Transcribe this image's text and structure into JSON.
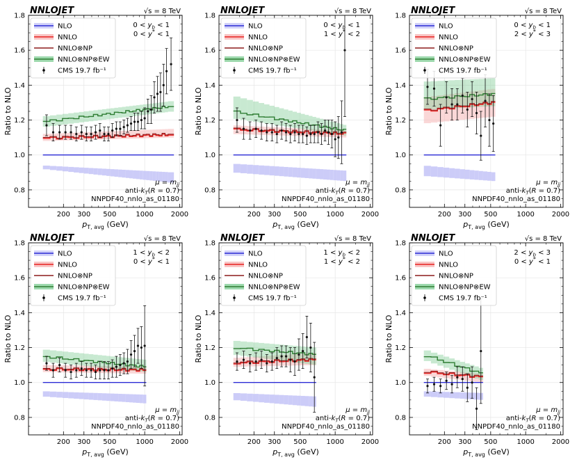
{
  "figure": {
    "brand": "NNLOJET",
    "energy": "√s = 8 TeV",
    "ylabel": "Ratio to NLO",
    "xlabel_main": "p",
    "xlabel_sub": "T, avg",
    "xlabel_unit": " (GeV)",
    "legend": [
      "NLO",
      "NNLO",
      "NNLO⊗NP",
      "NNLO⊗NP⊗EW",
      "CMS 19.7 fb⁻¹"
    ],
    "info": [
      "μ = mjj",
      "anti-kT(R = 0.7)",
      "NNPDF40_nnlo_as_01180"
    ],
    "xticks": [
      "200",
      "300",
      "500",
      "1000",
      "2000"
    ],
    "yticks": [
      "0.8",
      "1.0",
      "1.2",
      "1.4",
      "1.6",
      "1.8"
    ],
    "colors": {
      "nlo": "#2b2bd6",
      "nnlo": "#e8201f",
      "np": "#8b1a1a",
      "ew": "#2e7d32",
      "data": "#111111"
    }
  },
  "chart_data": [
    {
      "type": "line",
      "title": "0 < yb < 1, 0 < y* < 1",
      "region": [
        "0 < y_b < 1",
        "0 < y* < 1"
      ],
      "xlabel": "pT,avg (GeV)",
      "ylabel": "Ratio to NLO",
      "xlim": [
        100,
        2100
      ],
      "ylim": [
        0.7,
        1.8
      ],
      "x_edges": [
        133,
        153,
        174,
        196,
        220,
        245,
        272,
        300,
        330,
        362,
        395,
        430,
        468,
        507,
        548,
        592,
        638,
        686,
        737,
        790,
        846,
        905,
        967,
        1032,
        1101,
        1172,
        1248,
        1327,
        1410,
        1497,
        1588,
        1784
      ],
      "nlo_band": [
        [
          0.92,
          0.94
        ],
        [
          0.84,
          0.9
        ]
      ],
      "nnlo": [
        1.095,
        1.115
      ],
      "nnlo_band": [
        [
          1.08,
          1.12
        ],
        [
          1.1,
          1.15
        ]
      ],
      "ew": [
        1.19,
        1.28
      ],
      "ew_band": [
        [
          1.16,
          1.22
        ],
        [
          1.25,
          1.31
        ]
      ],
      "cms": [
        [
          143,
          1.17,
          0.06
        ],
        [
          163,
          1.13,
          0.05
        ],
        [
          185,
          1.13,
          0.04
        ],
        [
          208,
          1.13,
          0.04
        ],
        [
          232,
          1.13,
          0.04
        ],
        [
          258,
          1.12,
          0.04
        ],
        [
          286,
          1.13,
          0.04
        ],
        [
          315,
          1.12,
          0.04
        ],
        [
          346,
          1.12,
          0.04
        ],
        [
          378,
          1.13,
          0.04
        ],
        [
          412,
          1.14,
          0.04
        ],
        [
          449,
          1.12,
          0.04
        ],
        [
          487,
          1.12,
          0.04
        ],
        [
          527,
          1.14,
          0.04
        ],
        [
          570,
          1.15,
          0.04
        ],
        [
          615,
          1.15,
          0.04
        ],
        [
          662,
          1.16,
          0.04
        ],
        [
          711,
          1.17,
          0.04
        ],
        [
          763,
          1.18,
          0.04
        ],
        [
          818,
          1.19,
          0.05
        ],
        [
          875,
          1.19,
          0.05
        ],
        [
          936,
          1.2,
          0.05
        ],
        [
          1000,
          1.21,
          0.06
        ],
        [
          1066,
          1.25,
          0.07
        ],
        [
          1136,
          1.26,
          0.08
        ],
        [
          1210,
          1.33,
          0.09
        ],
        [
          1287,
          1.35,
          0.1
        ],
        [
          1368,
          1.36,
          0.11
        ],
        [
          1453,
          1.4,
          0.12
        ],
        [
          1542,
          1.48,
          0.13
        ],
        [
          1686,
          1.52,
          0.15
        ]
      ]
    },
    {
      "type": "line",
      "title": "0 < yb < 1, 1 < y* < 2",
      "region": [
        "0 < y_b < 1",
        "1 < y* < 2"
      ],
      "xlabel": "pT,avg (GeV)",
      "ylabel": "Ratio to NLO",
      "xlim": [
        100,
        2100
      ],
      "ylim": [
        0.7,
        1.8
      ],
      "x_edges": [
        133,
        153,
        174,
        196,
        220,
        245,
        272,
        300,
        330,
        362,
        395,
        430,
        468,
        507,
        548,
        592,
        638,
        686,
        737,
        790,
        846,
        905,
        967,
        1032,
        1101,
        1172,
        1248
      ],
      "nlo_band": [
        [
          0.9,
          0.95
        ],
        [
          0.85,
          0.91
        ]
      ],
      "nnlo": [
        1.145,
        1.12
      ],
      "nnlo_band": [
        [
          1.12,
          1.17
        ],
        [
          1.1,
          1.14
        ]
      ],
      "ew": [
        1.25,
        1.14
      ],
      "ew_band": [
        [
          1.21,
          1.34
        ],
        [
          1.11,
          1.17
        ]
      ],
      "cms": [
        [
          143,
          1.2,
          0.07
        ],
        [
          163,
          1.15,
          0.06
        ],
        [
          185,
          1.14,
          0.05
        ],
        [
          208,
          1.15,
          0.05
        ],
        [
          232,
          1.14,
          0.05
        ],
        [
          258,
          1.13,
          0.05
        ],
        [
          286,
          1.13,
          0.05
        ],
        [
          315,
          1.12,
          0.05
        ],
        [
          346,
          1.14,
          0.05
        ],
        [
          378,
          1.13,
          0.05
        ],
        [
          412,
          1.12,
          0.05
        ],
        [
          449,
          1.13,
          0.05
        ],
        [
          487,
          1.12,
          0.05
        ],
        [
          527,
          1.12,
          0.05
        ],
        [
          570,
          1.11,
          0.05
        ],
        [
          615,
          1.12,
          0.05
        ],
        [
          662,
          1.12,
          0.05
        ],
        [
          711,
          1.13,
          0.06
        ],
        [
          763,
          1.12,
          0.06
        ],
        [
          818,
          1.14,
          0.06
        ],
        [
          875,
          1.13,
          0.07
        ],
        [
          936,
          1.12,
          0.08
        ],
        [
          1000,
          1.09,
          0.1
        ],
        [
          1066,
          1.1,
          0.12
        ],
        [
          1136,
          1.13,
          0.18
        ],
        [
          1210,
          1.6,
          0.38
        ]
      ]
    },
    {
      "type": "line",
      "title": "0 < yb < 1, 2 < y* < 3",
      "region": [
        "0 < y_b < 1",
        "2 < y* < 3"
      ],
      "xlabel": "pT,avg (GeV)",
      "ylabel": "Ratio to NLO",
      "xlim": [
        100,
        2100
      ],
      "ylim": [
        0.7,
        1.8
      ],
      "x_edges": [
        133,
        153,
        174,
        196,
        220,
        245,
        272,
        300,
        330,
        362,
        395,
        430,
        468,
        507,
        548
      ],
      "nlo_band": [
        [
          0.88,
          0.94
        ],
        [
          0.85,
          0.9
        ]
      ],
      "nnlo": [
        1.25,
        1.3
      ],
      "nnlo_band": [
        [
          1.18,
          1.33
        ],
        [
          1.22,
          1.38
        ]
      ],
      "ew": [
        1.32,
        1.35
      ],
      "ew_band": [
        [
          1.26,
          1.42
        ],
        [
          1.28,
          1.44
        ]
      ],
      "cms": [
        [
          143,
          1.39,
          0.1
        ],
        [
          163,
          1.38,
          0.1
        ],
        [
          185,
          1.17,
          0.12
        ],
        [
          208,
          1.33,
          0.09
        ],
        [
          232,
          1.29,
          0.09
        ],
        [
          258,
          1.29,
          0.09
        ],
        [
          286,
          1.34,
          0.1
        ],
        [
          315,
          1.26,
          0.1
        ],
        [
          346,
          1.32,
          0.1
        ],
        [
          378,
          1.24,
          0.12
        ],
        [
          412,
          1.11,
          0.14
        ],
        [
          449,
          1.31,
          0.15
        ],
        [
          487,
          1.2,
          0.15
        ],
        [
          527,
          1.18,
          0.16
        ]
      ]
    },
    {
      "type": "line",
      "title": "1 < yb < 2, 0 < y* < 1",
      "region": [
        "1 < y_b < 2",
        "0 < y* < 1"
      ],
      "xlabel": "pT,avg (GeV)",
      "ylabel": "Ratio to NLO",
      "xlim": [
        100,
        2100
      ],
      "ylim": [
        0.7,
        1.8
      ],
      "x_edges": [
        133,
        153,
        174,
        196,
        220,
        245,
        272,
        300,
        330,
        362,
        395,
        430,
        468,
        507,
        548,
        592,
        638,
        686,
        737,
        790,
        846,
        905,
        967,
        1032
      ],
      "nlo_band": [
        [
          0.92,
          0.95
        ],
        [
          0.88,
          0.93
        ]
      ],
      "nnlo": [
        1.075,
        1.07
      ],
      "nnlo_band": [
        [
          1.06,
          1.1
        ],
        [
          1.05,
          1.09
        ]
      ],
      "ew": [
        1.15,
        1.09
      ],
      "ew_band": [
        [
          1.12,
          1.19
        ],
        [
          1.06,
          1.13
        ]
      ],
      "cms": [
        [
          143,
          1.11,
          0.04
        ],
        [
          163,
          1.07,
          0.04
        ],
        [
          185,
          1.1,
          0.04
        ],
        [
          208,
          1.07,
          0.04
        ],
        [
          232,
          1.06,
          0.04
        ],
        [
          258,
          1.07,
          0.04
        ],
        [
          286,
          1.08,
          0.04
        ],
        [
          315,
          1.07,
          0.04
        ],
        [
          346,
          1.07,
          0.04
        ],
        [
          378,
          1.06,
          0.04
        ],
        [
          412,
          1.07,
          0.05
        ],
        [
          449,
          1.07,
          0.05
        ],
        [
          487,
          1.07,
          0.05
        ],
        [
          527,
          1.08,
          0.05
        ],
        [
          570,
          1.09,
          0.06
        ],
        [
          615,
          1.1,
          0.06
        ],
        [
          662,
          1.11,
          0.06
        ],
        [
          711,
          1.12,
          0.07
        ],
        [
          763,
          1.16,
          0.08
        ],
        [
          818,
          1.18,
          0.09
        ],
        [
          875,
          1.21,
          0.1
        ],
        [
          936,
          1.2,
          0.12
        ],
        [
          1000,
          1.21,
          0.23
        ]
      ]
    },
    {
      "type": "line",
      "title": "1 < yb < 2, 1 < y* < 2",
      "region": [
        "1 < y_b < 2",
        "1 < y* < 2"
      ],
      "xlabel": "pT,avg (GeV)",
      "ylabel": "Ratio to NLO",
      "xlim": [
        100,
        2100
      ],
      "ylim": [
        0.7,
        1.8
      ],
      "x_edges": [
        133,
        153,
        174,
        196,
        220,
        245,
        272,
        300,
        330,
        362,
        395,
        430,
        468,
        507,
        548,
        592,
        638,
        686
      ],
      "nlo_band": [
        [
          0.9,
          0.94
        ],
        [
          0.86,
          0.92
        ]
      ],
      "nnlo": [
        1.11,
        1.13
      ],
      "nnlo_band": [
        [
          1.09,
          1.14
        ],
        [
          1.1,
          1.17
        ]
      ],
      "ew": [
        1.2,
        1.16
      ],
      "ew_band": [
        [
          1.16,
          1.24
        ],
        [
          1.1,
          1.2
        ]
      ],
      "cms": [
        [
          143,
          1.12,
          0.05
        ],
        [
          163,
          1.13,
          0.05
        ],
        [
          185,
          1.11,
          0.05
        ],
        [
          208,
          1.12,
          0.05
        ],
        [
          232,
          1.13,
          0.05
        ],
        [
          258,
          1.11,
          0.05
        ],
        [
          286,
          1.12,
          0.05
        ],
        [
          315,
          1.14,
          0.06
        ],
        [
          346,
          1.15,
          0.06
        ],
        [
          378,
          1.15,
          0.06
        ],
        [
          412,
          1.13,
          0.07
        ],
        [
          449,
          1.12,
          0.08
        ],
        [
          487,
          1.16,
          0.09
        ],
        [
          527,
          1.18,
          0.1
        ],
        [
          570,
          1.26,
          0.12
        ],
        [
          615,
          1.2,
          0.14
        ],
        [
          662,
          1.03,
          0.2
        ]
      ]
    },
    {
      "type": "line",
      "title": "2 < yb < 3, 0 < y* < 1",
      "region": [
        "2 < y_b < 3",
        "0 < y* < 1"
      ],
      "xlabel": "pT,avg (GeV)",
      "ylabel": "Ratio to NLO",
      "xlim": [
        100,
        2100
      ],
      "ylim": [
        0.7,
        1.8
      ],
      "x_edges": [
        133,
        153,
        174,
        196,
        220,
        245,
        272,
        300,
        330,
        362,
        395,
        430
      ],
      "nlo_band": [
        [
          0.92,
          0.95
        ],
        [
          0.9,
          0.94
        ]
      ],
      "nnlo": [
        1.06,
        1.03
      ],
      "nnlo_band": [
        [
          1.04,
          1.08
        ],
        [
          1.0,
          1.05
        ]
      ],
      "ew": [
        1.16,
        1.05
      ],
      "ew_band": [
        [
          1.13,
          1.19
        ],
        [
          1.01,
          1.08
        ]
      ],
      "cms": [
        [
          143,
          0.98,
          0.04
        ],
        [
          163,
          0.99,
          0.04
        ],
        [
          185,
          0.98,
          0.04
        ],
        [
          208,
          1.01,
          0.05
        ],
        [
          232,
          0.99,
          0.05
        ],
        [
          258,
          1.03,
          0.06
        ],
        [
          286,
          1.02,
          0.07
        ],
        [
          315,
          0.97,
          0.08
        ],
        [
          346,
          1.0,
          0.09
        ],
        [
          378,
          0.85,
          0.12
        ],
        [
          412,
          1.18,
          0.3
        ]
      ]
    }
  ]
}
